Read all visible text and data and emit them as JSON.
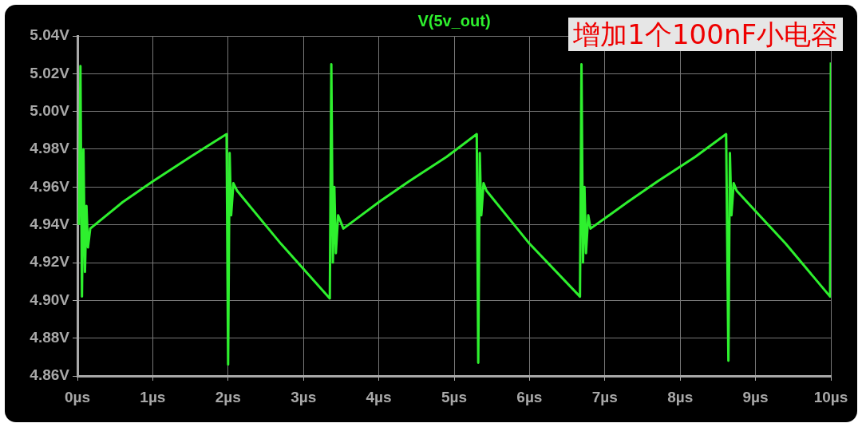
{
  "chart_data": {
    "type": "line",
    "title": "V(5v_out)",
    "annotations": [
      "增加1个100nF小电容"
    ],
    "x": [
      0.02,
      0.04,
      0.06,
      0.08,
      0.1,
      0.12,
      0.14,
      0.17,
      0.6,
      1.0,
      1.5,
      1.98,
      2.0,
      2.02,
      2.04,
      2.07,
      2.12,
      2.7,
      3.35,
      3.37,
      3.39,
      3.41,
      3.43,
      3.46,
      3.53,
      4.0,
      4.4,
      4.9,
      5.3,
      5.32,
      5.34,
      5.36,
      5.39,
      5.43,
      6.0,
      6.67,
      6.69,
      6.71,
      6.73,
      6.75,
      6.78,
      6.81,
      7.3,
      7.7,
      8.2,
      8.61,
      8.64,
      8.66,
      8.68,
      8.71,
      8.75,
      9.4,
      9.99,
      10.0
    ],
    "series": [
      {
        "color": "#2ef02e",
        "values": [
          4.94,
          5.024,
          4.902,
          4.98,
          4.915,
          4.95,
          4.928,
          4.938,
          4.952,
          4.963,
          4.976,
          4.988,
          4.866,
          4.978,
          4.945,
          4.962,
          4.958,
          4.93,
          4.901,
          5.025,
          4.92,
          4.96,
          4.925,
          4.945,
          4.938,
          4.952,
          4.963,
          4.976,
          4.988,
          4.867,
          4.978,
          4.945,
          4.962,
          4.958,
          4.93,
          4.902,
          5.025,
          4.92,
          4.96,
          4.925,
          4.945,
          4.938,
          4.952,
          4.963,
          4.976,
          4.988,
          4.868,
          4.978,
          4.945,
          4.962,
          4.958,
          4.93,
          4.902,
          5.026
        ]
      }
    ],
    "xlim": [
      0,
      10
    ],
    "xticks": [
      {
        "value": 0,
        "label": "0µs"
      },
      {
        "value": 1,
        "label": "1µs"
      },
      {
        "value": 2,
        "label": "2µs"
      },
      {
        "value": 3,
        "label": "3µs"
      },
      {
        "value": 4,
        "label": "4µs"
      },
      {
        "value": 5,
        "label": "5µs"
      },
      {
        "value": 6,
        "label": "6µs"
      },
      {
        "value": 7,
        "label": "7µs"
      },
      {
        "value": 8,
        "label": "8µs"
      },
      {
        "value": 9,
        "label": "9µs"
      },
      {
        "value": 10,
        "label": "10µs"
      }
    ],
    "ylim": [
      4.86,
      5.04
    ],
    "yticks": [
      {
        "value": 4.86,
        "label": "4.86V"
      },
      {
        "value": 4.88,
        "label": "4.88V"
      },
      {
        "value": 4.9,
        "label": "4.90V"
      },
      {
        "value": 4.92,
        "label": "4.92V"
      },
      {
        "value": 4.94,
        "label": "4.94V"
      },
      {
        "value": 4.96,
        "label": "4.96V"
      },
      {
        "value": 4.98,
        "label": "4.98V"
      },
      {
        "value": 5.0,
        "label": "5.00V"
      },
      {
        "value": 5.02,
        "label": "5.02V"
      },
      {
        "value": 5.04,
        "label": "5.04V"
      }
    ],
    "grid": true,
    "legend": false,
    "marker": "none",
    "line_style": "solid"
  }
}
